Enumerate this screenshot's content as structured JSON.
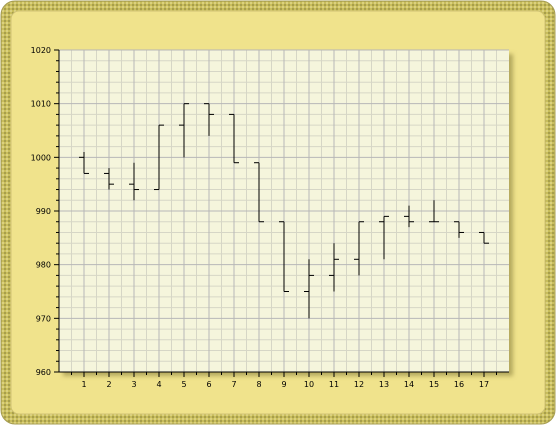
{
  "colors": {
    "frame_outer": "#b8b06a",
    "frame_border": "#d8cc6e",
    "frame_fill": "#f0e38c",
    "plot_bg": "#f5f5dc",
    "grid_major": "#b7b7b7",
    "grid_minor": "#d6d6c6",
    "bar_color": "#000000"
  },
  "chart_data": {
    "type": "ohlc",
    "title": "",
    "xlabel": "",
    "ylabel": "",
    "ylim": [
      960,
      1020
    ],
    "xlim": [
      0,
      18
    ],
    "grid": true,
    "y_ticks": [
      "960",
      "970",
      "980",
      "990",
      "1000",
      "1010",
      "1020"
    ],
    "x_ticks": [
      "1",
      "2",
      "3",
      "4",
      "5",
      "6",
      "7",
      "8",
      "9",
      "10",
      "11",
      "12",
      "13",
      "14",
      "15",
      "16",
      "17"
    ],
    "bars": [
      {
        "x": 1,
        "open": 1000,
        "high": 1001,
        "low": 997,
        "close": 997
      },
      {
        "x": 2,
        "open": 997,
        "high": 998,
        "low": 994,
        "close": 995
      },
      {
        "x": 3,
        "open": 995,
        "high": 999,
        "low": 992,
        "close": 994
      },
      {
        "x": 4,
        "open": 994,
        "high": 1006,
        "low": 994,
        "close": 1006
      },
      {
        "x": 5,
        "open": 1006,
        "high": 1010,
        "low": 1000,
        "close": 1010
      },
      {
        "x": 6,
        "open": 1010,
        "high": 1010,
        "low": 1004,
        "close": 1008
      },
      {
        "x": 7,
        "open": 1008,
        "high": 1008,
        "low": 999,
        "close": 999
      },
      {
        "x": 8,
        "open": 999,
        "high": 999,
        "low": 988,
        "close": 988
      },
      {
        "x": 9,
        "open": 988,
        "high": 988,
        "low": 975,
        "close": 975
      },
      {
        "x": 10,
        "open": 975,
        "high": 981,
        "low": 970,
        "close": 978
      },
      {
        "x": 11,
        "open": 978,
        "high": 984,
        "low": 975,
        "close": 981
      },
      {
        "x": 12,
        "open": 981,
        "high": 988,
        "low": 978,
        "close": 988
      },
      {
        "x": 13,
        "open": 988,
        "high": 989,
        "low": 981,
        "close": 989
      },
      {
        "x": 14,
        "open": 989,
        "high": 991,
        "low": 987,
        "close": 988
      },
      {
        "x": 15,
        "open": 988,
        "high": 992,
        "low": 988,
        "close": 988
      },
      {
        "x": 16,
        "open": 988,
        "high": 988,
        "low": 985,
        "close": 986
      },
      {
        "x": 17,
        "open": 986,
        "high": 986,
        "low": 984,
        "close": 984
      }
    ]
  }
}
